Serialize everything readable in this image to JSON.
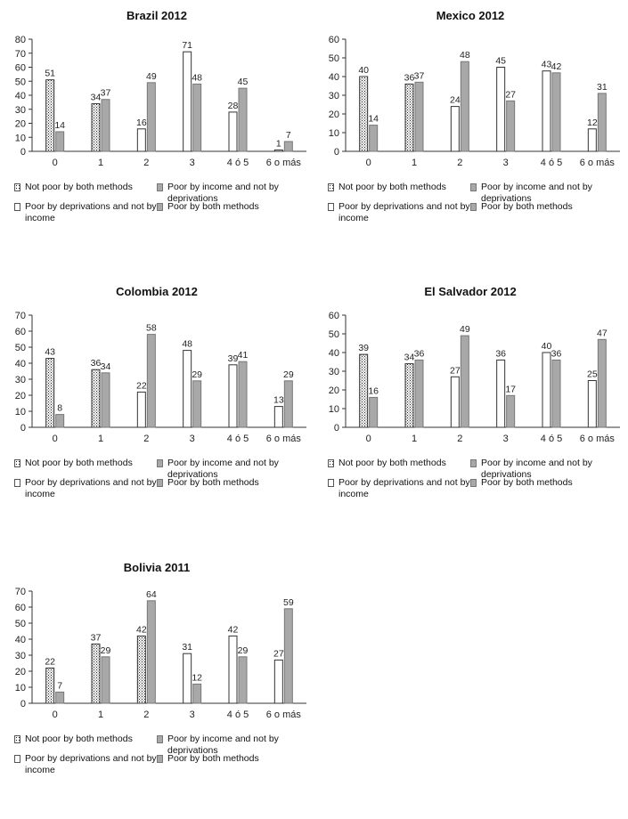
{
  "series_names": [
    "Not poor by both methods",
    "Poor by income and not by deprivations",
    "Poor by deprivations and not by income",
    "Poor by both methods"
  ],
  "chart_data": [
    {
      "type": "bar",
      "title": "Brazil 2012",
      "categories": [
        "0",
        "1",
        "2",
        "3",
        "4 ó 5",
        "6 o más"
      ],
      "ylim": [
        0,
        80
      ],
      "yticks": [
        0,
        10,
        20,
        30,
        40,
        50,
        60,
        70,
        80
      ],
      "ytick_labels": [
        "0",
        "10",
        "20",
        "30",
        "40",
        "50",
        "60",
        "70",
        "80"
      ],
      "series": [
        {
          "name": "Not poor by both methods",
          "values": [
            51,
            34,
            null,
            null,
            null,
            null
          ]
        },
        {
          "name": "Poor by income and not by deprivations",
          "values": [
            14,
            37,
            null,
            null,
            null,
            null
          ]
        },
        {
          "name": "Poor by deprivations and not by income",
          "values": [
            null,
            null,
            16,
            71,
            28,
            1
          ]
        },
        {
          "name": "Poor by both methods",
          "values": [
            null,
            null,
            49,
            48,
            45,
            7
          ]
        }
      ]
    },
    {
      "type": "bar",
      "title": "Mexico 2012",
      "categories": [
        "0",
        "1",
        "2",
        "3",
        "4 ó 5",
        "6 o más"
      ],
      "ylim": [
        0,
        60
      ],
      "yticks": [
        0,
        10,
        20,
        30,
        40,
        50,
        60
      ],
      "ytick_labels": [
        "0",
        "10",
        "20",
        "30",
        "40",
        "50",
        "60"
      ],
      "series": [
        {
          "name": "Not poor by both methods",
          "values": [
            40,
            36,
            null,
            null,
            null,
            null
          ]
        },
        {
          "name": "Poor by income and not by deprivations",
          "values": [
            14,
            37,
            null,
            null,
            null,
            null
          ]
        },
        {
          "name": "Poor by deprivations and not by income",
          "values": [
            null,
            null,
            24,
            45,
            43,
            12
          ]
        },
        {
          "name": "Poor by both methods",
          "values": [
            null,
            null,
            48,
            27,
            42,
            31
          ]
        }
      ]
    },
    {
      "type": "bar",
      "title": "Colombia 2012",
      "categories": [
        "0",
        "1",
        "2",
        "3",
        "4 ó 5",
        "6 o más"
      ],
      "ylim": [
        0,
        70
      ],
      "yticks": [
        0,
        10,
        20,
        30,
        40,
        50,
        60,
        70
      ],
      "ytick_labels": [
        "0",
        "10",
        "20",
        "30",
        "40",
        "50",
        "60",
        "70"
      ],
      "series": [
        {
          "name": "Not poor by both methods",
          "values": [
            43,
            36,
            null,
            null,
            null,
            null
          ]
        },
        {
          "name": "Poor by income and not by deprivations",
          "values": [
            8,
            34,
            null,
            null,
            null,
            null
          ]
        },
        {
          "name": "Poor by deprivations and not by income",
          "values": [
            null,
            null,
            22,
            48,
            39,
            13
          ]
        },
        {
          "name": "Poor by both methods",
          "values": [
            null,
            null,
            58,
            29,
            41,
            29
          ]
        }
      ]
    },
    {
      "type": "bar",
      "title": "El Salvador 2012",
      "categories": [
        "0",
        "1",
        "2",
        "3",
        "4 ó 5",
        "6 o más"
      ],
      "ylim": [
        0,
        60
      ],
      "yticks": [
        0,
        10,
        20,
        30,
        40,
        50,
        60
      ],
      "ytick_labels": [
        "0",
        "10",
        "20",
        "30",
        "40",
        "50",
        "60"
      ],
      "series": [
        {
          "name": "Not poor by both methods",
          "values": [
            39,
            34,
            null,
            null,
            null,
            null
          ]
        },
        {
          "name": "Poor by income and not by deprivations",
          "values": [
            16,
            36,
            null,
            null,
            null,
            null
          ]
        },
        {
          "name": "Poor by deprivations and not by income",
          "values": [
            null,
            null,
            27,
            36,
            40,
            25
          ]
        },
        {
          "name": "Poor by both methods",
          "values": [
            null,
            null,
            49,
            17,
            36,
            47
          ]
        }
      ]
    },
    {
      "type": "bar",
      "title": "Bolivia 2011",
      "categories": [
        "0",
        "1",
        "2",
        "3",
        "4 ó 5",
        "6 o más"
      ],
      "ylim": [
        0,
        70
      ],
      "yticks": [
        0,
        10,
        20,
        30,
        40,
        50,
        60,
        70
      ],
      "ytick_labels": [
        "0",
        "10",
        "20",
        "30",
        "40",
        "50",
        "60",
        "70"
      ],
      "series": [
        {
          "name": "Not poor by both methods",
          "values": [
            22,
            37,
            42,
            null,
            null,
            null
          ]
        },
        {
          "name": "Poor by income and not by deprivations",
          "values": [
            7,
            29,
            64,
            null,
            null,
            null
          ]
        },
        {
          "name": "Poor by deprivations and not by income",
          "values": [
            null,
            null,
            null,
            31,
            42,
            27
          ]
        },
        {
          "name": "Poor by both methods",
          "values": [
            null,
            null,
            null,
            12,
            29,
            59
          ]
        }
      ]
    }
  ]
}
